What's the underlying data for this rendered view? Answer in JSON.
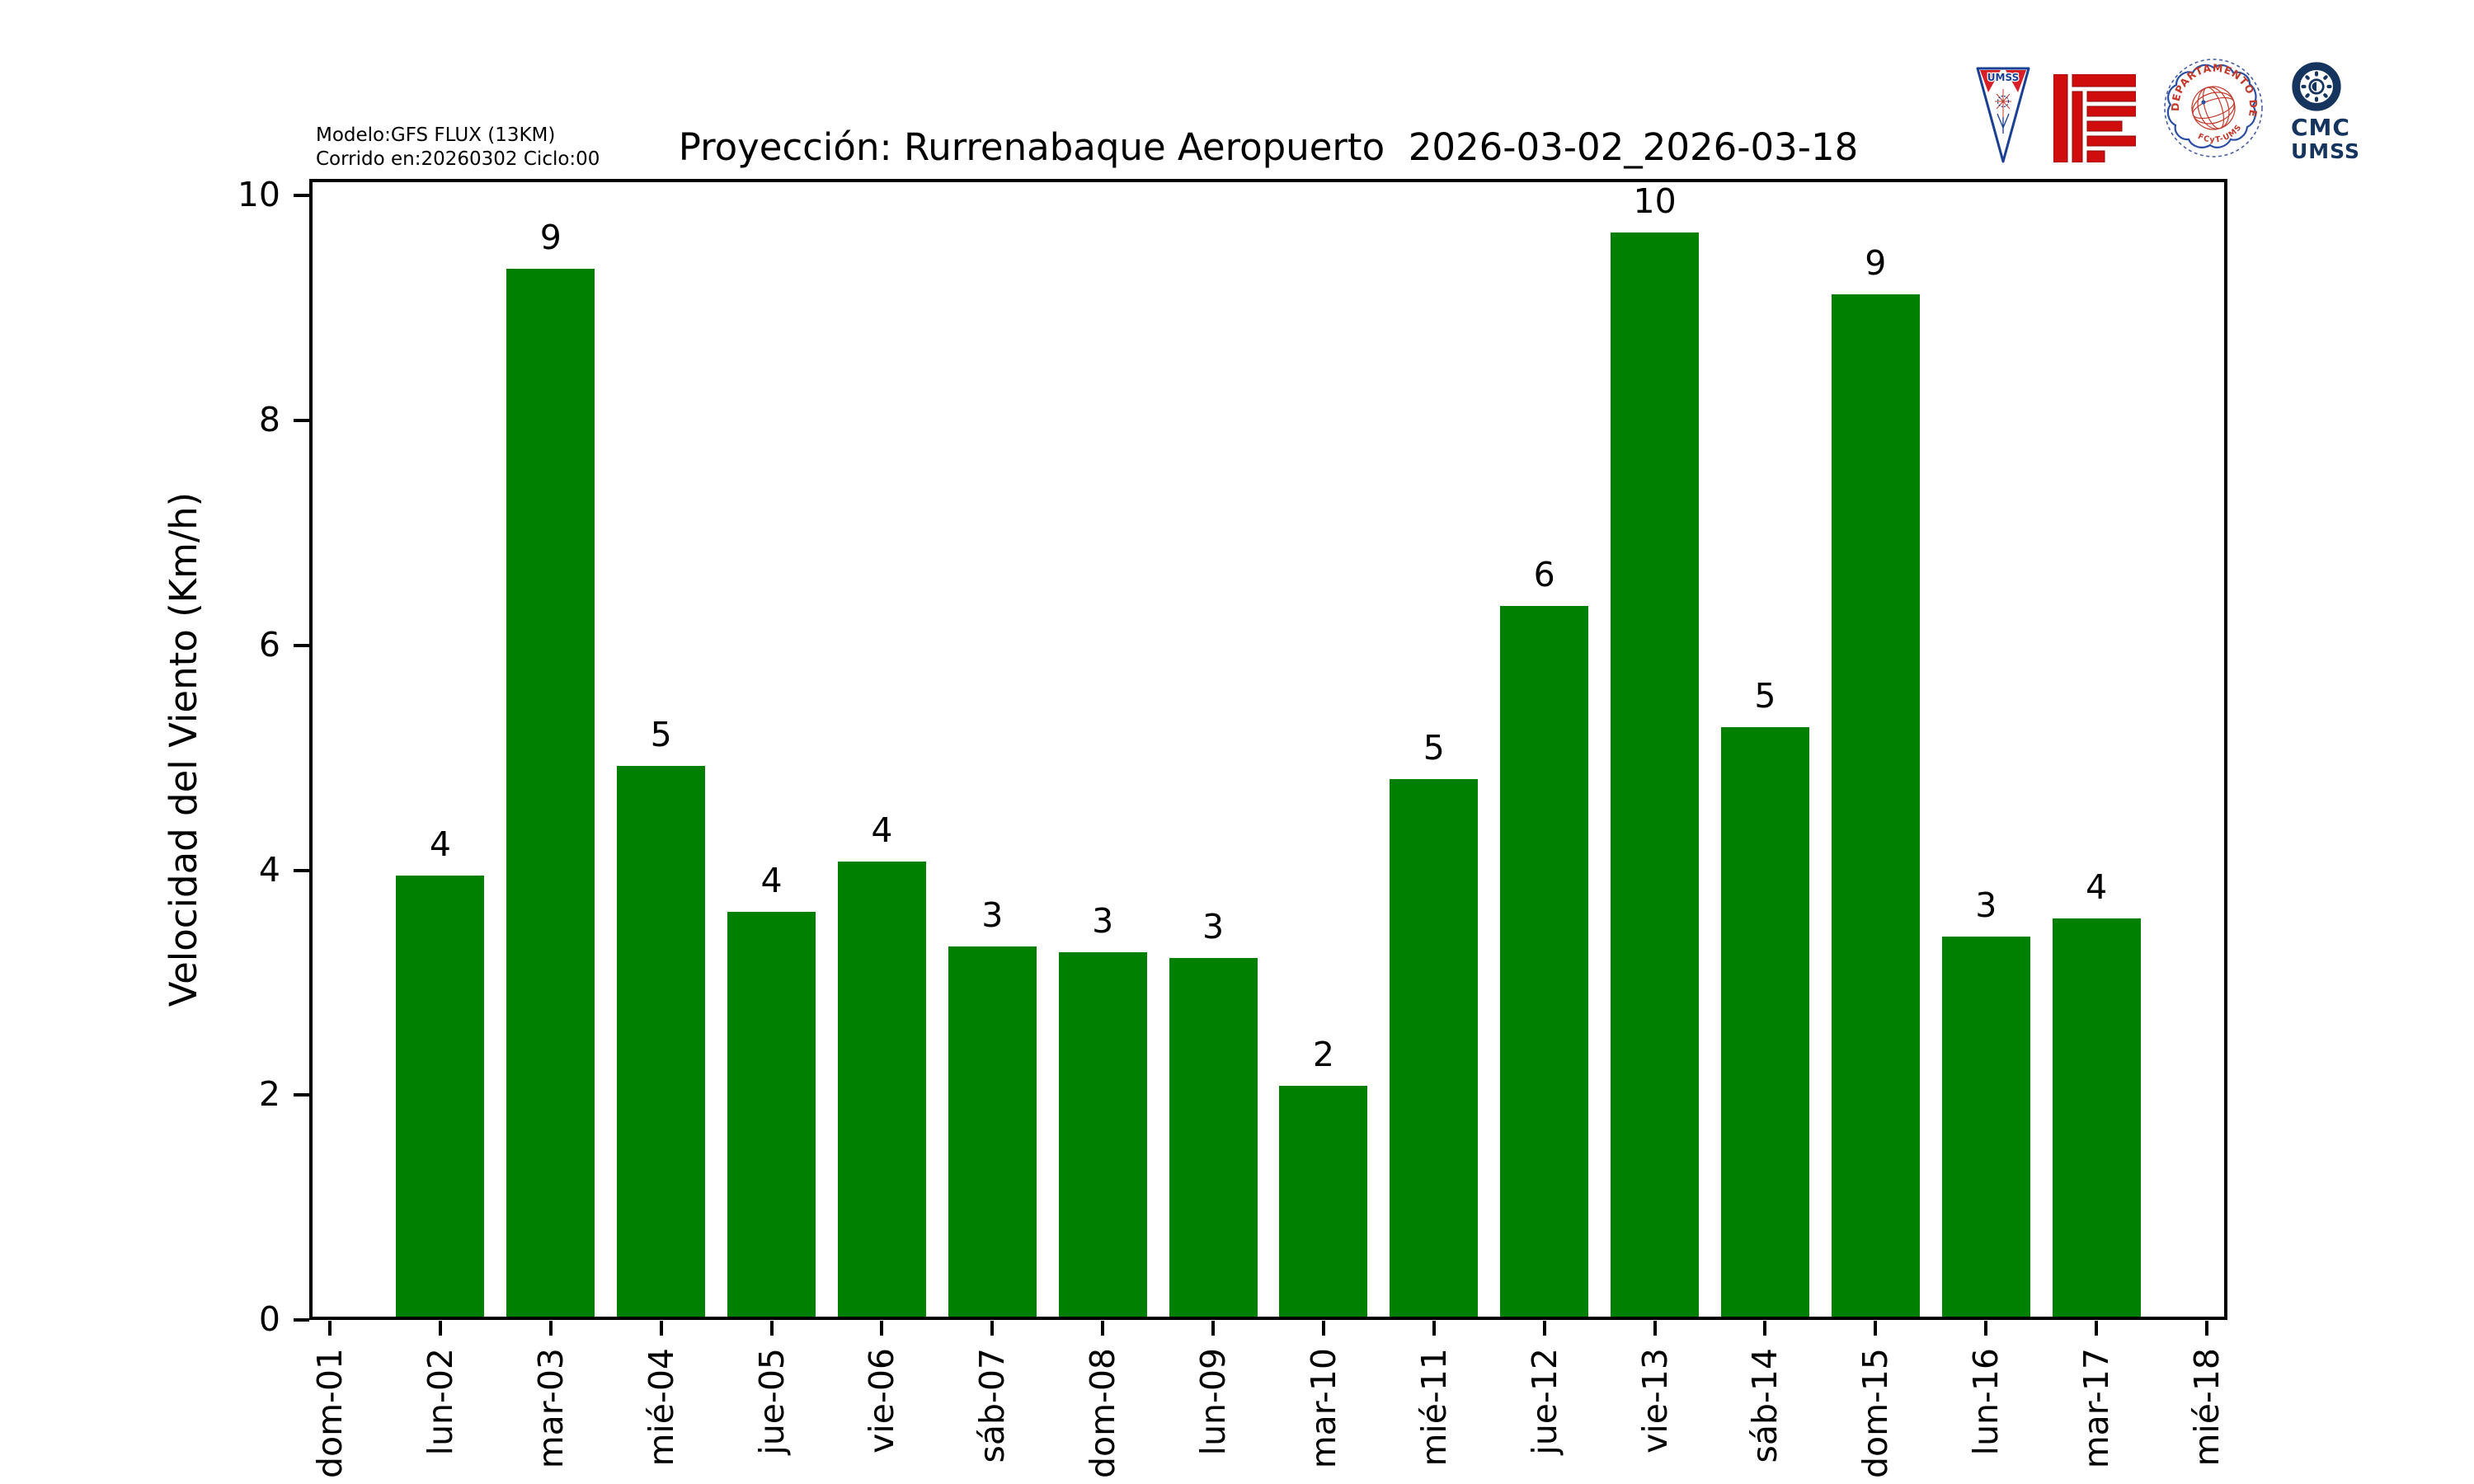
{
  "annotations": {
    "model_line1": "Modelo:GFS FLUX (13KM)",
    "model_line2": "Corrido en:20260302 Ciclo:00"
  },
  "title": "Proyección: Rurrenabaque Aeropuerto  2026-03-02_2026-03-18",
  "logos": {
    "umss_pennant_text": "UMSS",
    "stamp_text_top": "DEPARTAMENTO DE FÍSICA",
    "stamp_text_bottom": "FCyT-UMSS",
    "cmc_line1": "CMC",
    "cmc_line2": "UMSS",
    "pennant_blue": "#1a3f93",
    "pennant_red": "#d61f26",
    "maze_red": "#cf0d0d",
    "stamp_blue": "#4a5fa5",
    "stamp_red": "#c0392b",
    "cmc_navy": "#16355e"
  },
  "chart_data": {
    "type": "bar",
    "title": "Proyección: Rurrenabaque Aeropuerto  2026-03-02_2026-03-18",
    "xlabel": "",
    "ylabel": "Velocidad del Viento (Km/h)",
    "ylim": [
      0,
      10.15
    ],
    "yticks": [
      0,
      2,
      4,
      6,
      8,
      10
    ],
    "grid": false,
    "legend_position": "none",
    "bar_color": "#008000",
    "categories": [
      "dom-01",
      "lun-02",
      "mar-03",
      "mié-04",
      "jue-05",
      "vie-06",
      "sáb-07",
      "dom-08",
      "lun-09",
      "mar-10",
      "mié-11",
      "jue-12",
      "vie-13",
      "sáb-14",
      "dom-15",
      "lun-16",
      "mar-17",
      "mié-18"
    ],
    "values": [
      0,
      3.95,
      9.35,
      4.93,
      3.63,
      4.08,
      3.32,
      3.27,
      3.22,
      2.08,
      4.81,
      6.35,
      9.67,
      5.27,
      9.12,
      3.41,
      3.57,
      0
    ],
    "bar_labels": [
      "",
      "4",
      "9",
      "5",
      "4",
      "4",
      "3",
      "3",
      "3",
      "2",
      "5",
      "6",
      "10",
      "5",
      "9",
      "3",
      "4",
      ""
    ]
  }
}
